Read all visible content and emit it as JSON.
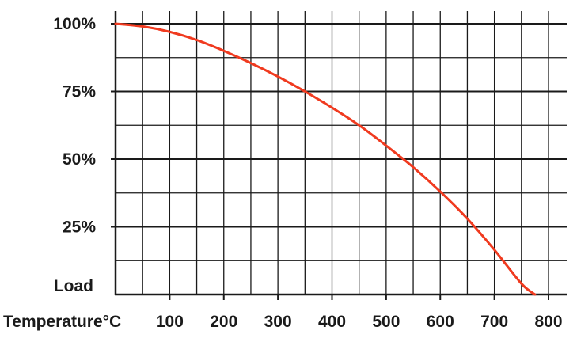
{
  "chart_data": {
    "type": "line",
    "title": "",
    "xlabel": "Temperature°C",
    "ylabel": "Load",
    "xlim": [
      0,
      830
    ],
    "ylim": [
      0,
      100
    ],
    "x_ticks": [
      100,
      200,
      300,
      400,
      500,
      600,
      700,
      800
    ],
    "x_tick_labels": [
      "100",
      "200",
      "300",
      "400",
      "500",
      "600",
      "700",
      "800"
    ],
    "y_ticks": [
      25,
      50,
      75,
      100
    ],
    "y_tick_labels": [
      "25%",
      "50%",
      "75%",
      "100%"
    ],
    "grid": true,
    "grid_x_step": 50,
    "grid_y_step": 12.5,
    "legend": "none",
    "colors": {
      "line": "#f03a1f",
      "grid": "#1a1a1a",
      "text": "#1a1a1a"
    },
    "series": [
      {
        "x": [
          0,
          50,
          100,
          150,
          200,
          250,
          300,
          350,
          400,
          450,
          500,
          550,
          600,
          650,
          700,
          750,
          775
        ],
        "y": [
          100,
          99,
          97,
          94,
          90,
          85.5,
          80.5,
          75,
          69,
          62.5,
          55,
          47,
          38,
          28,
          16.5,
          4,
          0
        ]
      }
    ]
  }
}
